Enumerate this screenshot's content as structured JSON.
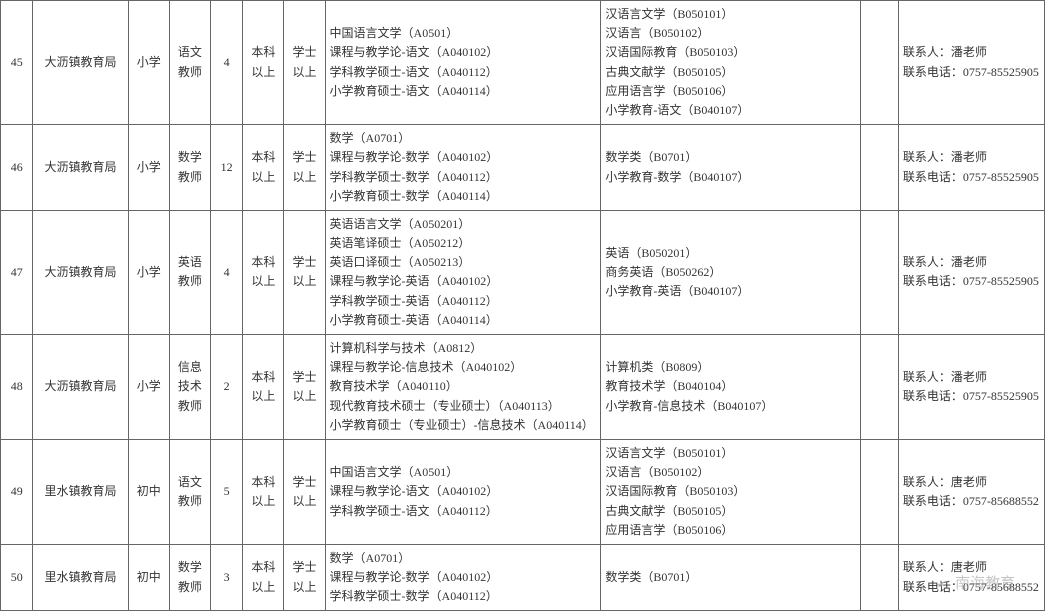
{
  "table": {
    "font_size_pt": 9,
    "border_color": "#666666",
    "background": "#ffffff",
    "text_color": "#333333",
    "rows": [
      {
        "num": "45",
        "org": "大沥镇教育局",
        "level": "小学",
        "subject": "语文\n教师",
        "count": "4",
        "degree": "本科\n以上",
        "xuewei": "学士\n以上",
        "major1": "中国语言文学（A0501）\n课程与教学论-语文（A040102）\n学科教学硕士-语文（A040112）\n小学教育硕士-语文（A040114）",
        "major2": "汉语言文学（B050101）\n汉语言（B050102）\n汉语国际教育（B050103）\n古典文献学（B050105）\n应用语言学（B050106）\n小学教育-语文（B040107）",
        "blank": "",
        "contact": "联系人：潘老师\n联系电话：0757-85525905"
      },
      {
        "num": "46",
        "org": "大沥镇教育局",
        "level": "小学",
        "subject": "数学\n教师",
        "count": "12",
        "degree": "本科\n以上",
        "xuewei": "学士\n以上",
        "major1": "数学（A0701）\n课程与教学论-数学（A040102）\n学科教学硕士-数学（A040112）\n小学教育硕士-数学（A040114）",
        "major2": "数学类（B0701）\n小学教育-数学（B040107）",
        "blank": "",
        "contact": "联系人：潘老师\n联系电话：0757-85525905"
      },
      {
        "num": "47",
        "org": "大沥镇教育局",
        "level": "小学",
        "subject": "英语\n教师",
        "count": "4",
        "degree": "本科\n以上",
        "xuewei": "学士\n以上",
        "major1": "英语语言文学（A050201）\n英语笔译硕士（A050212）\n英语口译硕士（A050213）\n课程与教学论-英语（A040102）\n学科教学硕士-英语（A040112）\n小学教育硕士-英语（A040114）",
        "major2": "英语（B050201）\n商务英语（B050262）\n小学教育-英语（B040107）",
        "blank": "",
        "contact": "联系人：潘老师\n联系电话：0757-85525905"
      },
      {
        "num": "48",
        "org": "大沥镇教育局",
        "level": "小学",
        "subject": "信息\n技术\n教师",
        "count": "2",
        "degree": "本科\n以上",
        "xuewei": "学士\n以上",
        "major1": "计算机科学与技术（A0812）\n课程与教学论-信息技术（A040102）\n教育技术学（A040110）\n现代教育技术硕士（专业硕士）（A040113）\n小学教育硕士（专业硕士）-信息技术（A040114）",
        "major2": "计算机类（B0809）\n教育技术学（B040104）\n小学教育-信息技术（B040107）",
        "blank": "",
        "contact": "联系人：潘老师\n联系电话：0757-85525905"
      },
      {
        "num": "49",
        "org": "里水镇教育局",
        "level": "初中",
        "subject": "语文\n教师",
        "count": "5",
        "degree": "本科\n以上",
        "xuewei": "学士\n以上",
        "major1": "中国语言文学（A0501）\n课程与教学论-语文（A040102）\n学科教学硕士-语文（A040112）",
        "major2": "汉语言文学（B050101）\n汉语言（B050102）\n汉语国际教育（B050103）\n古典文献学（B050105）\n应用语言学（B050106）",
        "blank": "",
        "contact": "联系人：唐老师\n联系电话：0757-85688552"
      },
      {
        "num": "50",
        "org": "里水镇教育局",
        "level": "初中",
        "subject": "数学\n教师",
        "count": "3",
        "degree": "本科\n以上",
        "xuewei": "学士\n以上",
        "major1": "数学（A0701）\n课程与教学论-数学（A040102）\n学科教学硕士-数学（A040112）",
        "major2": "数学类（B0701）",
        "blank": "",
        "contact": "联系人：唐老师\n联系电话：0757-85688552"
      }
    ]
  },
  "watermark": {
    "text": "南海教育",
    "icon_glyph": "◕",
    "color": "#999999",
    "opacity": 0.55
  }
}
